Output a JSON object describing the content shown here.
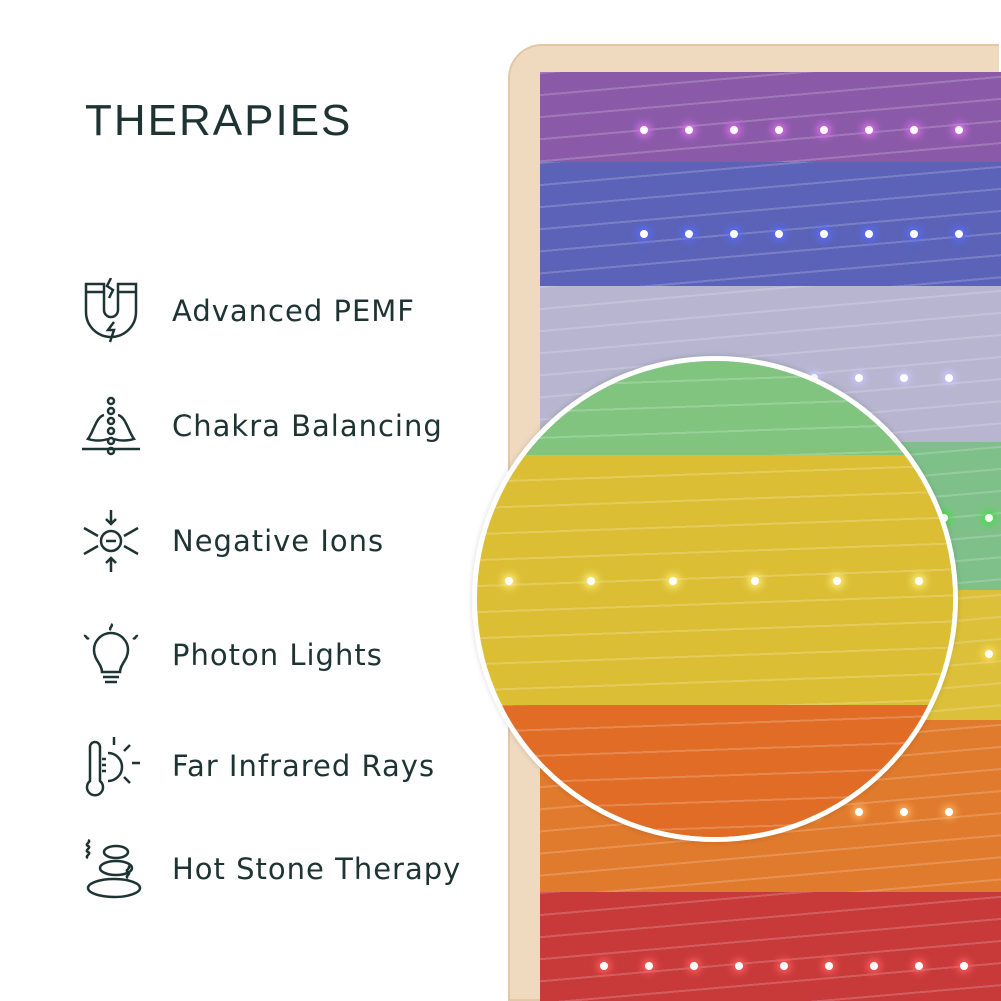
{
  "title": "THERAPIES",
  "items": [
    {
      "label": "Advanced PEMF",
      "icon": "magnet-icon"
    },
    {
      "label": "Chakra Balancing",
      "icon": "meditation-chakra-icon"
    },
    {
      "label": "Negative Ions",
      "icon": "negative-ion-icon"
    },
    {
      "label": "Photon Lights",
      "icon": "lightbulb-icon"
    },
    {
      "label": "Far Infrared Rays",
      "icon": "thermometer-sun-icon"
    },
    {
      "label": "Hot Stone Therapy",
      "icon": "hot-stones-icon"
    }
  ],
  "colors": {
    "text": "#1e3433",
    "purple": "#8a5aa8",
    "blue": "#5b63b8",
    "lavender": "#b7b5cf",
    "green": "#7fc08a",
    "yellow": "#dcc03a",
    "orange": "#e07a2c",
    "red": "#c8393a"
  }
}
